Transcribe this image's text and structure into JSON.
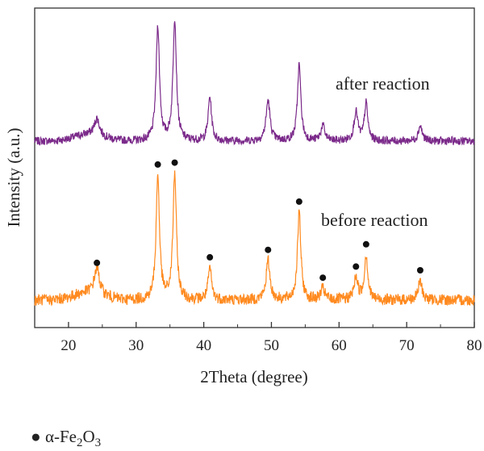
{
  "chart_data": {
    "type": "line",
    "xlabel": "2Theta (degree)",
    "ylabel": "Intensity (a.u.)",
    "xlim": [
      15,
      80
    ],
    "xticks": [
      "20",
      "30",
      "40",
      "50",
      "60",
      "70",
      "80"
    ],
    "yticks": [],
    "grid": false,
    "peaks": [
      {
        "x": 24.2,
        "w": 0.45
      },
      {
        "x": 33.2,
        "w": 0.3
      },
      {
        "x": 35.7,
        "w": 0.3
      },
      {
        "x": 40.9,
        "w": 0.3
      },
      {
        "x": 49.5,
        "w": 0.35
      },
      {
        "x": 54.1,
        "w": 0.3
      },
      {
        "x": 57.6,
        "w": 0.35
      },
      {
        "x": 62.5,
        "w": 0.35
      },
      {
        "x": 64.0,
        "w": 0.3
      },
      {
        "x": 72.0,
        "w": 0.35
      }
    ],
    "series": [
      {
        "name": "after reaction",
        "color": "#7b2a8a",
        "heights": [
          0.1,
          0.68,
          0.72,
          0.26,
          0.24,
          0.45,
          0.09,
          0.17,
          0.22,
          0.09
        ]
      },
      {
        "name": "before reaction",
        "color": "#ff8a1f",
        "heights": [
          0.14,
          0.67,
          0.68,
          0.17,
          0.21,
          0.47,
          0.06,
          0.12,
          0.24,
          0.1
        ]
      }
    ],
    "markers": {
      "symbol": "●",
      "series": "before reaction",
      "x": [
        24.2,
        33.2,
        35.7,
        40.9,
        49.5,
        54.1,
        57.6,
        62.5,
        64.0,
        72.0
      ]
    },
    "legend": {
      "symbol": "●",
      "text": "α-Fe",
      "sub1": "2",
      "mid": "O",
      "sub2": "3"
    }
  }
}
